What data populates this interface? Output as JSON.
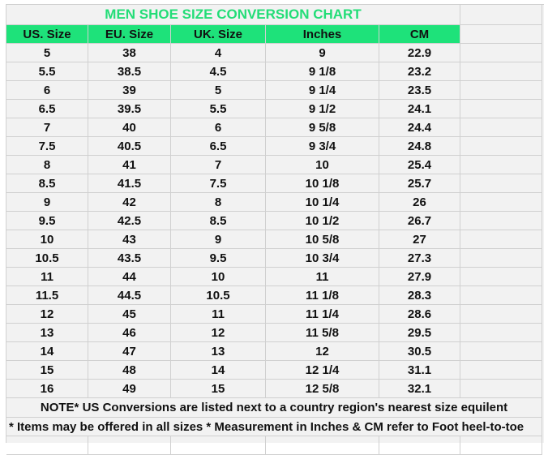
{
  "title": "MEN SHOE SIZE CONVERSION CHART",
  "colors": {
    "title": "#22dd77",
    "header_bg": "#1ee27a",
    "sheet_bg": "#f2f2f2",
    "grid": "#d0d0d0"
  },
  "headers": [
    "US. Size",
    "EU. Size",
    "UK. Size",
    "Inches",
    "CM"
  ],
  "rows": [
    [
      "5",
      "38",
      "4",
      "9",
      "22.9"
    ],
    [
      "5.5",
      "38.5",
      "4.5",
      "9 1/8",
      "23.2"
    ],
    [
      "6",
      "39",
      "5",
      "9 1/4",
      "23.5"
    ],
    [
      "6.5",
      "39.5",
      "5.5",
      "9 1/2",
      "24.1"
    ],
    [
      "7",
      "40",
      "6",
      "9 5/8",
      "24.4"
    ],
    [
      "7.5",
      "40.5",
      "6.5",
      "9 3/4",
      "24.8"
    ],
    [
      "8",
      "41",
      "7",
      "10",
      "25.4"
    ],
    [
      "8.5",
      "41.5",
      "7.5",
      "10 1/8",
      "25.7"
    ],
    [
      "9",
      "42",
      "8",
      "10 1/4",
      "26"
    ],
    [
      "9.5",
      "42.5",
      "8.5",
      "10 1/2",
      "26.7"
    ],
    [
      "10",
      "43",
      "9",
      "10 5/8",
      "27"
    ],
    [
      "10.5",
      "43.5",
      "9.5",
      "10 3/4",
      "27.3"
    ],
    [
      "11",
      "44",
      "10",
      "11",
      "27.9"
    ],
    [
      "11.5",
      "44.5",
      "10.5",
      "11 1/8",
      "28.3"
    ],
    [
      "12",
      "45",
      "11",
      "11 1/4",
      "28.6"
    ],
    [
      "13",
      "46",
      "12",
      "11 5/8",
      "29.5"
    ],
    [
      "14",
      "47",
      "13",
      "12",
      "30.5"
    ],
    [
      "15",
      "48",
      "14",
      "12 1/4",
      "31.1"
    ],
    [
      "16",
      "49",
      "15",
      "12 5/8",
      "32.1"
    ]
  ],
  "notes": [
    "NOTE* US Conversions are listed next to a country region's nearest size equilent",
    "* Items may be offered in all sizes * Measurement in Inches & CM refer to Foot heel-to-toe"
  ]
}
